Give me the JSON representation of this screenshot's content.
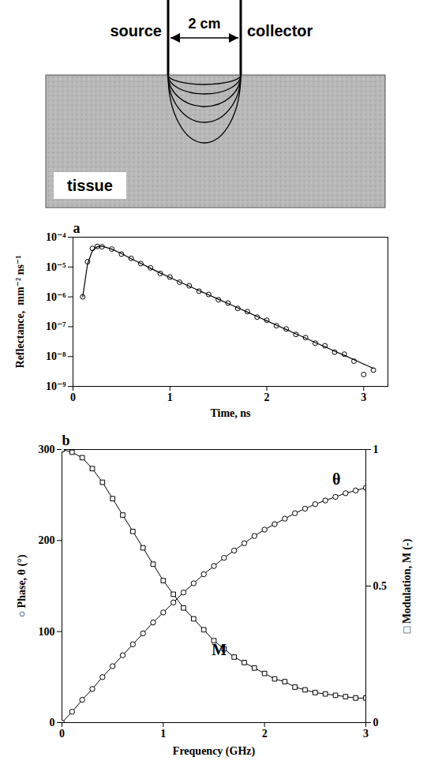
{
  "diagram": {
    "source_label": "source",
    "collector_label": "collector",
    "separation_label": "2 cm",
    "medium_label": "tissue"
  },
  "chart_data": [
    {
      "type": "scatter",
      "title": "a",
      "xlabel": "Time, ns",
      "ylabel": "Reflectance,  mm⁻² ns⁻¹",
      "x": [
        0.1,
        0.15,
        0.2,
        0.25,
        0.3,
        0.4,
        0.5,
        0.6,
        0.7,
        0.8,
        0.9,
        1.0,
        1.1,
        1.2,
        1.3,
        1.4,
        1.5,
        1.6,
        1.7,
        1.8,
        1.9,
        2.0,
        2.1,
        2.2,
        2.3,
        2.4,
        2.5,
        2.6,
        2.7,
        2.8,
        2.9,
        3.0,
        3.1
      ],
      "series": [
        {
          "type": "scatter",
          "marker": "circle",
          "color": "#000000",
          "values": [
            1e-06,
            1.5e-05,
            4.2e-05,
            4.9e-05,
            4.8e-05,
            4e-05,
            2.7e-05,
            1.95e-05,
            1.3e-05,
            9.4e-06,
            6.1e-06,
            4.6e-06,
            3.1e-06,
            2.35e-06,
            1.55e-06,
            1.2e-06,
            8e-07,
            6.2e-07,
            4.1e-07,
            3.2e-07,
            2.1e-07,
            1.65e-07,
            1.08e-07,
            8.4e-08,
            5.5e-08,
            4.3e-08,
            2.8e-08,
            2.3e-08,
            1.4e-08,
            1.2e-08,
            7e-09,
            2.5e-09,
            3.5e-09
          ]
        },
        {
          "type": "line",
          "line_style": "solid",
          "color": "#000000",
          "values": [
            1e-06,
            1.26e-05,
            3.55e-05,
            4.79e-05,
            5.01e-05,
            3.98e-05,
            2.82e-05,
            1.91e-05,
            1.32e-05,
            9.1e-06,
            6.3e-06,
            4.47e-06,
            3.16e-06,
            2.29e-06,
            1.62e-06,
            1.17e-06,
            8.3e-07,
            6e-07,
            4.27e-07,
            3.09e-07,
            2.19e-07,
            1.58e-07,
            1.12e-07,
            8.1e-08,
            5.75e-08,
            4.17e-08,
            2.95e-08,
            2.14e-08,
            1.51e-08,
            1.1e-08,
            7.8e-09,
            5.6e-09,
            4e-09
          ]
        }
      ],
      "xlim": [
        0,
        3.25
      ],
      "xticks": [
        0,
        1,
        2,
        3
      ],
      "ylim": [
        1e-09,
        0.0001
      ],
      "yticks": [
        {
          "value": 1e-09,
          "label": "10⁻⁹"
        },
        {
          "value": 1e-08,
          "label": "10⁻⁸"
        },
        {
          "value": 1e-07,
          "label": "10⁻⁷"
        },
        {
          "value": 1e-06,
          "label": "10⁻⁶"
        },
        {
          "value": 1e-05,
          "label": "10⁻⁵"
        },
        {
          "value": 0.0001,
          "label": "10⁻⁴"
        }
      ],
      "log": "y",
      "grid": false
    },
    {
      "type": "line",
      "title": "b",
      "xlabel": "Frequency (GHz)",
      "ylabel": "○ Phase, θ (°)",
      "y2label": "□ Modulation, M (-)",
      "x": [
        0,
        0.1,
        0.2,
        0.3,
        0.4,
        0.5,
        0.6,
        0.7,
        0.8,
        0.9,
        1.0,
        1.1,
        1.2,
        1.3,
        1.4,
        1.5,
        1.6,
        1.7,
        1.8,
        1.9,
        2.0,
        2.1,
        2.2,
        2.3,
        2.4,
        2.5,
        2.6,
        2.7,
        2.8,
        2.9,
        3.0
      ],
      "series": [
        {
          "name": "θ",
          "type": "line",
          "marker": "circle",
          "line_style": "solid",
          "color": "#000000",
          "values": [
            0,
            12,
            25,
            37,
            50,
            62,
            74,
            86,
            98,
            110,
            121,
            132,
            143,
            153,
            163,
            172,
            181,
            189,
            197,
            205,
            212,
            218,
            224,
            230,
            235,
            240,
            244,
            248,
            252,
            255,
            258
          ]
        },
        {
          "name": "M",
          "type": "line",
          "axis": "y2",
          "marker": "square",
          "line_style": "solid",
          "color": "#000000",
          "values": [
            1.0,
            0.99,
            0.97,
            0.93,
            0.88,
            0.82,
            0.76,
            0.7,
            0.64,
            0.58,
            0.52,
            0.47,
            0.42,
            0.38,
            0.34,
            0.3,
            0.27,
            0.24,
            0.22,
            0.2,
            0.18,
            0.16,
            0.15,
            0.13,
            0.12,
            0.11,
            0.105,
            0.1,
            0.095,
            0.09,
            0.09
          ]
        }
      ],
      "xlim": [
        0,
        3
      ],
      "xticks": [
        0,
        1,
        2,
        3
      ],
      "ylim": [
        0,
        300
      ],
      "yticks": [
        0,
        100,
        200,
        300
      ],
      "y2lim": [
        0,
        1
      ],
      "y2ticks": [
        0,
        0.5,
        1
      ],
      "grid": false
    }
  ]
}
